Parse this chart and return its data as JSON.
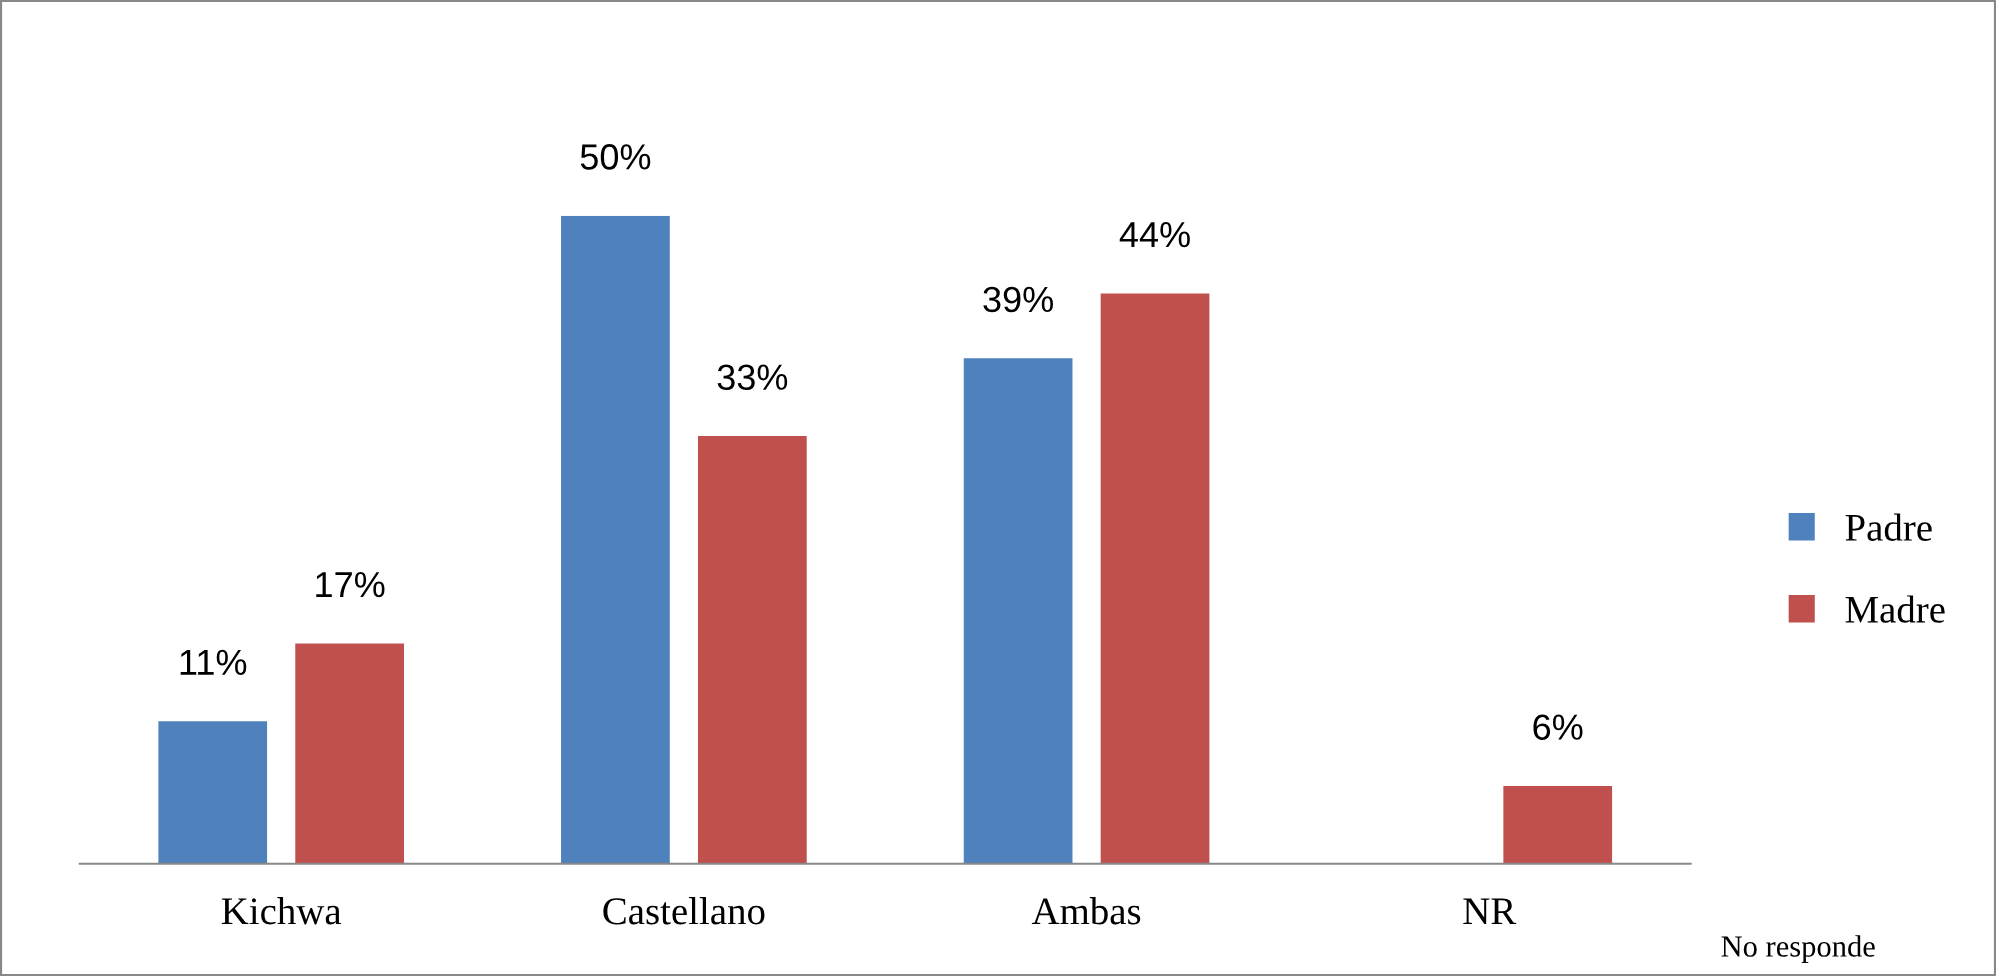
{
  "chart_data": {
    "type": "bar",
    "categories": [
      "Kichwa",
      "Castellano",
      "Ambas",
      "NR"
    ],
    "series": [
      {
        "name": "Padre",
        "color": "#4f81bd",
        "values": [
          11,
          50,
          39,
          null
        ],
        "value_labels": [
          "11%",
          "50%",
          "39%",
          null
        ]
      },
      {
        "name": "Madre",
        "color": "#c0504d",
        "values": [
          17,
          33,
          44,
          6
        ],
        "value_labels": [
          "17%",
          "33%",
          "44%",
          "6%"
        ]
      }
    ],
    "legend": "right",
    "grid": false,
    "annotations": [
      "No responde"
    ]
  }
}
